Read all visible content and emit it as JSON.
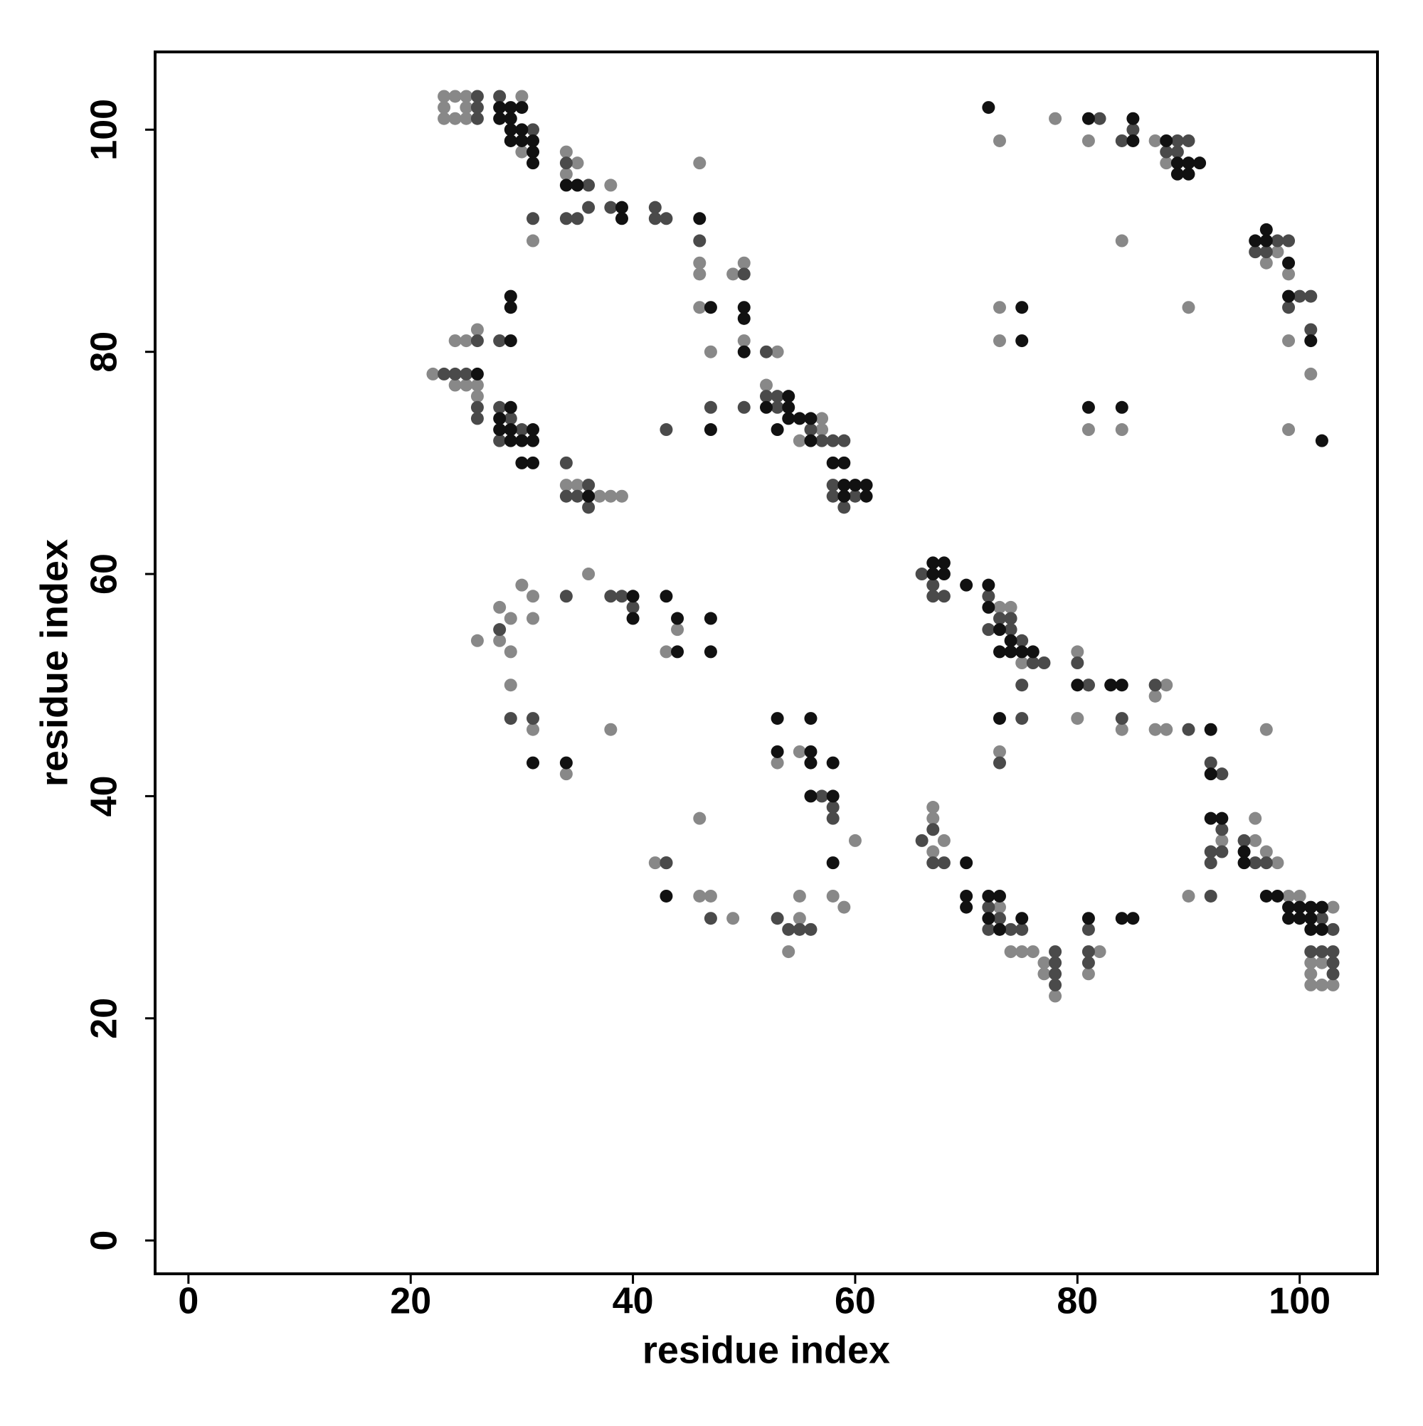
{
  "chart_data": {
    "type": "scatter",
    "xlabel": "residue index",
    "ylabel": "residue index",
    "xlim": [
      -3,
      107
    ],
    "ylim": [
      -3,
      107
    ],
    "xticks": [
      0,
      20,
      40,
      60,
      80,
      100
    ],
    "yticks": [
      0,
      20,
      40,
      60,
      80,
      100
    ],
    "grid": false,
    "series": [
      {
        "color": "#888888",
        "x": [
          23,
          24,
          25,
          23,
          23,
          24,
          25,
          25,
          30,
          30,
          34,
          34,
          35,
          38,
          31,
          46,
          46,
          46,
          46,
          47,
          49,
          50,
          50,
          53,
          52,
          55,
          57,
          57,
          22,
          24,
          25,
          26,
          24,
          25,
          26,
          26,
          29,
          35,
          36,
          37,
          38,
          39,
          34,
          26,
          28,
          29,
          28,
          29,
          30,
          31,
          31,
          29,
          31,
          34,
          36,
          38,
          44,
          43,
          46,
          46,
          47,
          49,
          55,
          53,
          55,
          55,
          54,
          58,
          59,
          60,
          42,
          80,
          80,
          81,
          73,
          84,
          87,
          88,
          87,
          88,
          97,
          73,
          74,
          75,
          67,
          67,
          67,
          68,
          73,
          74,
          75,
          76,
          77,
          77,
          81,
          82,
          78,
          90,
          96,
          97,
          98,
          99,
          100,
          101,
          101,
          101,
          102,
          103,
          103,
          102,
          93,
          96,
          73,
          78,
          81,
          84,
          87,
          88,
          90,
          73,
          73,
          81,
          84,
          98,
          99,
          99,
          99,
          101,
          97
        ],
        "y": [
          103,
          103,
          103,
          102,
          101,
          101,
          101,
          102,
          103,
          98,
          98,
          96,
          97,
          95,
          90,
          97,
          88,
          87,
          84,
          80,
          87,
          88,
          81,
          80,
          77,
          72,
          74,
          73,
          78,
          81,
          81,
          82,
          77,
          77,
          77,
          76,
          73,
          68,
          68,
          67,
          67,
          67,
          68,
          54,
          57,
          56,
          54,
          53,
          59,
          58,
          56,
          50,
          46,
          42,
          60,
          46,
          55,
          53,
          38,
          31,
          31,
          29,
          44,
          43,
          31,
          29,
          26,
          31,
          30,
          36,
          34,
          53,
          47,
          50,
          44,
          46,
          49,
          50,
          46,
          46,
          46,
          57,
          57,
          52,
          39,
          38,
          35,
          36,
          30,
          26,
          26,
          26,
          25,
          24,
          24,
          26,
          22,
          31,
          38,
          35,
          34,
          31,
          31,
          25,
          24,
          23,
          23,
          23,
          30,
          25,
          36,
          36,
          99,
          101,
          99,
          90,
          99,
          97,
          84,
          84,
          81,
          73,
          73,
          89,
          87,
          81,
          73,
          78,
          88
        ]
      },
      {
        "color": "#4a4a4a",
        "x": [
          26,
          26,
          26,
          28,
          31,
          34,
          35,
          36,
          34,
          35,
          36,
          38,
          42,
          42,
          43,
          31,
          46,
          50,
          50,
          47,
          43,
          52,
          52,
          53,
          53,
          56,
          57,
          58,
          59,
          58,
          58,
          60,
          59,
          23,
          24,
          25,
          26,
          26,
          26,
          28,
          28,
          29,
          30,
          28,
          34,
          34,
          35,
          36,
          36,
          28,
          29,
          31,
          34,
          38,
          39,
          40,
          43,
          47,
          53,
          54,
          55,
          56,
          58,
          58,
          57,
          43,
          66,
          67,
          67,
          68,
          72,
          72,
          73,
          74,
          74,
          75,
          75,
          75,
          73,
          76,
          77,
          80,
          81,
          84,
          87,
          90,
          92,
          93,
          66,
          67,
          67,
          68,
          72,
          72,
          73,
          74,
          75,
          78,
          78,
          78,
          78,
          81,
          81,
          81,
          92,
          92,
          92,
          93,
          93,
          95,
          96,
          97,
          101,
          102,
          103,
          103,
          103,
          103,
          102,
          82,
          84,
          85,
          88,
          89,
          90,
          89,
          98,
          96,
          97,
          99,
          99,
          101,
          101,
          100
        ],
        "y": [
          103,
          102,
          101,
          103,
          100,
          97,
          95,
          95,
          92,
          92,
          93,
          93,
          93,
          92,
          92,
          92,
          90,
          87,
          75,
          75,
          73,
          80,
          76,
          76,
          75,
          73,
          72,
          72,
          72,
          68,
          67,
          67,
          66,
          78,
          78,
          78,
          75,
          74,
          81,
          81,
          75,
          74,
          73,
          72,
          70,
          67,
          67,
          68,
          66,
          55,
          47,
          47,
          58,
          58,
          58,
          57,
          34,
          29,
          29,
          28,
          28,
          28,
          39,
          38,
          40,
          34,
          60,
          59,
          58,
          58,
          58,
          55,
          56,
          56,
          55,
          54,
          50,
          47,
          43,
          52,
          52,
          52,
          50,
          47,
          50,
          46,
          43,
          42,
          36,
          37,
          34,
          34,
          30,
          28,
          29,
          28,
          28,
          26,
          25,
          24,
          23,
          26,
          25,
          28,
          35,
          34,
          31,
          37,
          35,
          36,
          34,
          34,
          26,
          26,
          26,
          25,
          24,
          28,
          29,
          101,
          99,
          100,
          98,
          98,
          99,
          99,
          90,
          89,
          89,
          90,
          84,
          85,
          82,
          85
        ]
      },
      {
        "color": "#111111",
        "x": [
          28,
          29,
          30,
          28,
          29,
          29,
          30,
          29,
          30,
          31,
          31,
          31,
          34,
          35,
          39,
          39,
          46,
          47,
          50,
          50,
          50,
          47,
          52,
          53,
          54,
          54,
          54,
          55,
          56,
          56,
          59,
          59,
          60,
          61,
          61,
          59,
          58,
          26,
          29,
          29,
          29,
          29,
          28,
          28,
          29,
          29,
          30,
          31,
          31,
          30,
          31,
          36,
          31,
          34,
          40,
          40,
          43,
          44,
          44,
          47,
          47,
          43,
          53,
          53,
          56,
          56,
          56,
          58,
          56,
          58,
          58,
          67,
          68,
          68,
          67,
          70,
          72,
          72,
          73,
          73,
          74,
          75,
          76,
          74,
          80,
          83,
          84,
          73,
          92,
          92,
          70,
          70,
          70,
          72,
          73,
          72,
          73,
          75,
          81,
          84,
          85,
          92,
          93,
          95,
          95,
          97,
          98,
          99,
          100,
          99,
          100,
          101,
          101,
          101,
          102,
          102,
          72,
          81,
          85,
          85,
          88,
          89,
          89,
          90,
          90,
          91,
          96,
          97,
          97,
          99,
          99,
          101,
          75,
          75,
          81,
          84,
          102
        ],
        "y": [
          102,
          102,
          102,
          101,
          101,
          100,
          100,
          99,
          99,
          99,
          98,
          97,
          95,
          95,
          93,
          92,
          92,
          84,
          84,
          83,
          80,
          73,
          75,
          73,
          74,
          75,
          76,
          74,
          74,
          72,
          70,
          68,
          68,
          68,
          67,
          67,
          70,
          78,
          85,
          84,
          81,
          75,
          74,
          73,
          73,
          72,
          72,
          72,
          73,
          70,
          70,
          67,
          43,
          43,
          58,
          56,
          58,
          56,
          53,
          56,
          53,
          31,
          47,
          44,
          47,
          44,
          43,
          43,
          40,
          40,
          34,
          61,
          61,
          60,
          60,
          59,
          59,
          57,
          55,
          53,
          54,
          53,
          53,
          53,
          50,
          50,
          50,
          47,
          46,
          42,
          34,
          31,
          30,
          31,
          31,
          29,
          28,
          29,
          29,
          29,
          29,
          38,
          38,
          35,
          34,
          31,
          31,
          30,
          30,
          29,
          29,
          29,
          28,
          30,
          30,
          28,
          102,
          101,
          101,
          99,
          99,
          97,
          96,
          96,
          97,
          97,
          90,
          90,
          91,
          88,
          85,
          81,
          84,
          81,
          75,
          75,
          72
        ]
      }
    ]
  }
}
